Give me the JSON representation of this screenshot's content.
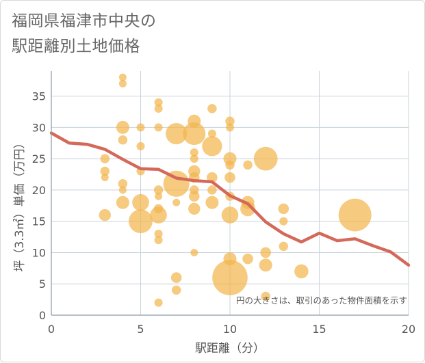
{
  "chart_data": {
    "type": "scatter",
    "title": [
      "福岡県福津市中央の",
      "駅距離別土地価格"
    ],
    "xlabel": "駅距離（分）",
    "ylabel": "坪（3.3㎡）単価（万円）",
    "xlim": [
      0,
      20
    ],
    "ylim": [
      0,
      39
    ],
    "xticks": [
      0,
      5,
      10,
      15,
      20
    ],
    "yticks": [
      0,
      5,
      10,
      15,
      20,
      25,
      30,
      35
    ],
    "note": "円の大きさは、取引のあった物件面積を示す",
    "colors": {
      "bubble": "#f3b54e",
      "line": "#d4695a",
      "grid": "#c9d3dc"
    },
    "bubbles": [
      {
        "x": 4,
        "y": 38,
        "s": 1
      },
      {
        "x": 4,
        "y": 37,
        "s": 1
      },
      {
        "x": 4,
        "y": 30,
        "s": 3
      },
      {
        "x": 4,
        "y": 28,
        "s": 1.5
      },
      {
        "x": 4,
        "y": 21,
        "s": 1.5
      },
      {
        "x": 4,
        "y": 20,
        "s": 1
      },
      {
        "x": 4,
        "y": 18,
        "s": 3
      },
      {
        "x": 3,
        "y": 25,
        "s": 1.5
      },
      {
        "x": 3,
        "y": 23,
        "s": 1.5
      },
      {
        "x": 3,
        "y": 22,
        "s": 1
      },
      {
        "x": 3,
        "y": 16,
        "s": 2.5
      },
      {
        "x": 5,
        "y": 30,
        "s": 1.2
      },
      {
        "x": 5,
        "y": 27,
        "s": 1.2
      },
      {
        "x": 5,
        "y": 23,
        "s": 1.2
      },
      {
        "x": 5,
        "y": 18,
        "s": 5
      },
      {
        "x": 5,
        "y": 15,
        "s": 10
      },
      {
        "x": 6,
        "y": 34,
        "s": 1.2
      },
      {
        "x": 6,
        "y": 33,
        "s": 1.2
      },
      {
        "x": 6,
        "y": 30,
        "s": 1.2
      },
      {
        "x": 6,
        "y": 20,
        "s": 1.5
      },
      {
        "x": 6,
        "y": 19,
        "s": 1
      },
      {
        "x": 6,
        "y": 17,
        "s": 1.5
      },
      {
        "x": 6,
        "y": 16,
        "s": 5
      },
      {
        "x": 6,
        "y": 13,
        "s": 1.2
      },
      {
        "x": 6,
        "y": 12,
        "s": 1.2
      },
      {
        "x": 6,
        "y": 2,
        "s": 1.2
      },
      {
        "x": 7,
        "y": 29,
        "s": 8
      },
      {
        "x": 7,
        "y": 21,
        "s": 12
      },
      {
        "x": 7,
        "y": 18,
        "s": 1
      },
      {
        "x": 7,
        "y": 6,
        "s": 2
      },
      {
        "x": 7,
        "y": 4,
        "s": 1.5
      },
      {
        "x": 8,
        "y": 31,
        "s": 3
      },
      {
        "x": 8,
        "y": 29,
        "s": 9
      },
      {
        "x": 8,
        "y": 26,
        "s": 1.2
      },
      {
        "x": 8,
        "y": 25,
        "s": 1.2
      },
      {
        "x": 8,
        "y": 23,
        "s": 2.5
      },
      {
        "x": 8,
        "y": 22,
        "s": 2
      },
      {
        "x": 8,
        "y": 20,
        "s": 1.5
      },
      {
        "x": 8,
        "y": 19,
        "s": 2
      },
      {
        "x": 8,
        "y": 17,
        "s": 2.5
      },
      {
        "x": 8,
        "y": 10,
        "s": 1
      },
      {
        "x": 9,
        "y": 33,
        "s": 1.5
      },
      {
        "x": 9,
        "y": 29,
        "s": 1.2
      },
      {
        "x": 9,
        "y": 27,
        "s": 7
      },
      {
        "x": 9,
        "y": 22,
        "s": 2
      },
      {
        "x": 9,
        "y": 20,
        "s": 1.5
      },
      {
        "x": 9,
        "y": 18,
        "s": 3
      },
      {
        "x": 10,
        "y": 31,
        "s": 1.5
      },
      {
        "x": 10,
        "y": 30,
        "s": 1.2
      },
      {
        "x": 10,
        "y": 25,
        "s": 3
      },
      {
        "x": 10,
        "y": 24,
        "s": 1.5
      },
      {
        "x": 10,
        "y": 22,
        "s": 2
      },
      {
        "x": 10,
        "y": 19,
        "s": 1.5
      },
      {
        "x": 10,
        "y": 16,
        "s": 5
      },
      {
        "x": 10,
        "y": 9,
        "s": 3
      },
      {
        "x": 10,
        "y": 6,
        "s": 22
      },
      {
        "x": 11,
        "y": 24,
        "s": 1.5
      },
      {
        "x": 11,
        "y": 18,
        "s": 3
      },
      {
        "x": 11,
        "y": 17,
        "s": 4
      },
      {
        "x": 11,
        "y": 9,
        "s": 2
      },
      {
        "x": 12,
        "y": 25,
        "s": 10
      },
      {
        "x": 12,
        "y": 10,
        "s": 2
      },
      {
        "x": 12,
        "y": 8,
        "s": 3
      },
      {
        "x": 12,
        "y": 3,
        "s": 1.5
      },
      {
        "x": 13,
        "y": 17,
        "s": 2
      },
      {
        "x": 13,
        "y": 15,
        "s": 1.2
      },
      {
        "x": 13,
        "y": 11,
        "s": 1.5
      },
      {
        "x": 14,
        "y": 7,
        "s": 3.5
      },
      {
        "x": 17,
        "y": 16,
        "s": 19
      }
    ],
    "trend": {
      "x": [
        0,
        1,
        2,
        3,
        4,
        5,
        6,
        7,
        8,
        9,
        10,
        11,
        12,
        13,
        14,
        15,
        16,
        17,
        18,
        19,
        20
      ],
      "y": [
        29.1,
        27.5,
        27.3,
        26.5,
        24.9,
        23.4,
        23.3,
        21.9,
        21.5,
        21.3,
        19.1,
        17.8,
        14.9,
        13.0,
        11.7,
        13.1,
        11.9,
        12.2,
        11.1,
        10.1,
        8.0
      ]
    }
  }
}
